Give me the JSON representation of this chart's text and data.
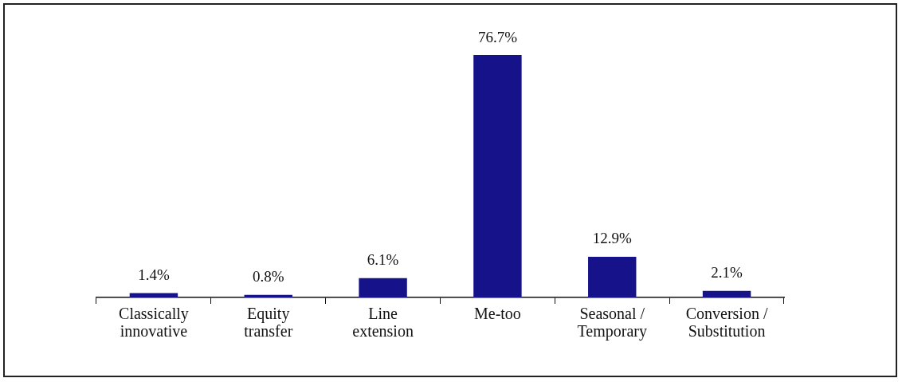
{
  "chart_data": {
    "type": "bar",
    "categories": [
      "Classically innovative",
      "Equity transfer",
      "Line extension",
      "Me-too",
      "Seasonal / Temporary",
      "Conversion / Substitution"
    ],
    "values": [
      1.4,
      0.8,
      6.1,
      76.7,
      12.9,
      2.1
    ],
    "value_labels": [
      "1.4%",
      "0.8%",
      "6.1%",
      "76.7%",
      "12.9%",
      "2.1%"
    ],
    "color": "#16128a",
    "grid": false,
    "legend": false
  }
}
